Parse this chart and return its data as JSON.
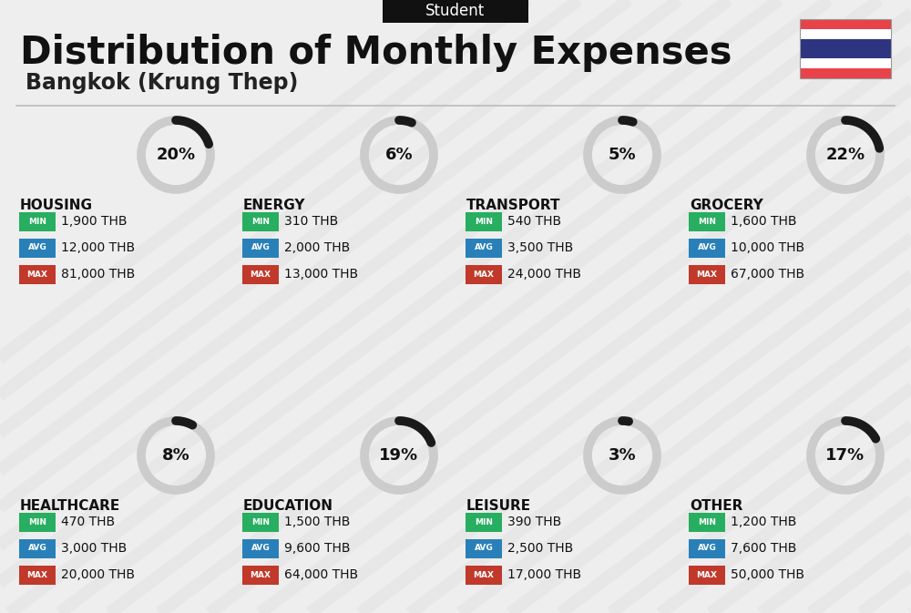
{
  "title": "Distribution of Monthly Expenses",
  "subtitle": "Bangkok (Krung Thep)",
  "category_label": "Student",
  "bg_color": "#eeeeee",
  "title_color": "#111111",
  "subtitle_color": "#222222",
  "categories": [
    {
      "name": "HOUSING",
      "pct": 20,
      "min_val": "1,900 THB",
      "avg_val": "12,000 THB",
      "max_val": "81,000 THB",
      "col": 0,
      "row": 0
    },
    {
      "name": "ENERGY",
      "pct": 6,
      "min_val": "310 THB",
      "avg_val": "2,000 THB",
      "max_val": "13,000 THB",
      "col": 1,
      "row": 0
    },
    {
      "name": "TRANSPORT",
      "pct": 5,
      "min_val": "540 THB",
      "avg_val": "3,500 THB",
      "max_val": "24,000 THB",
      "col": 2,
      "row": 0
    },
    {
      "name": "GROCERY",
      "pct": 22,
      "min_val": "1,600 THB",
      "avg_val": "10,000 THB",
      "max_val": "67,000 THB",
      "col": 3,
      "row": 0
    },
    {
      "name": "HEALTHCARE",
      "pct": 8,
      "min_val": "470 THB",
      "avg_val": "3,000 THB",
      "max_val": "20,000 THB",
      "col": 0,
      "row": 1
    },
    {
      "name": "EDUCATION",
      "pct": 19,
      "min_val": "1,500 THB",
      "avg_val": "9,600 THB",
      "max_val": "64,000 THB",
      "col": 1,
      "row": 1
    },
    {
      "name": "LEISURE",
      "pct": 3,
      "min_val": "390 THB",
      "avg_val": "2,500 THB",
      "max_val": "17,000 THB",
      "col": 2,
      "row": 1
    },
    {
      "name": "OTHER",
      "pct": 17,
      "min_val": "1,200 THB",
      "avg_val": "7,600 THB",
      "max_val": "50,000 THB",
      "col": 3,
      "row": 1
    }
  ],
  "min_color": "#27ae60",
  "avg_color": "#2980b9",
  "max_color": "#c0392b",
  "ring_color": "#cccccc",
  "ring_filled_color": "#1a1a1a",
  "flag_red": "#e8434a",
  "flag_blue": "#2d3580"
}
